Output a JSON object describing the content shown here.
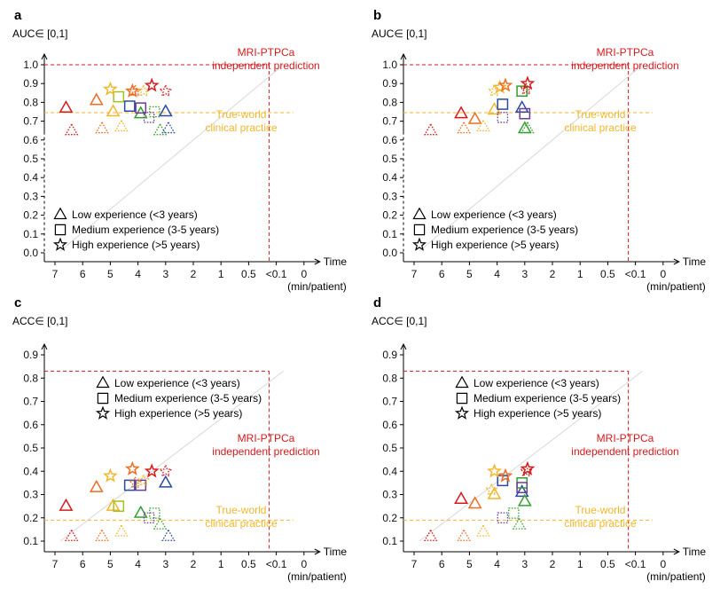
{
  "legend": [
    {
      "marker": "triangle",
      "label": "Low experience (<3 years)"
    },
    {
      "marker": "square",
      "label": "Medium experience (3-5 years)"
    },
    {
      "marker": "star",
      "label": "High experience (>5 years)"
    }
  ],
  "x_axis": {
    "ticks": [
      "7",
      "6",
      "5",
      "4",
      "3",
      "2",
      "1",
      "0.5",
      "<0.1",
      "0"
    ],
    "title": "Time",
    "unit": "(min/patient)"
  },
  "annotations": {
    "model_line1": "MRI-PTPCa",
    "model_line2": "independent prediction",
    "clinic_line1": "True-world",
    "clinic_line2": "clinical practice"
  },
  "colors": {
    "model": "#d7191c",
    "clinic": "#f2b62a",
    "diagonal": "#d8d8d8",
    "readers": [
      "#d7191c",
      "#ef6c21",
      "#f2b62a",
      "#a3c21a",
      "#33a02c",
      "#2b4aa0",
      "#6a3d9a"
    ]
  },
  "chart_data": [
    {
      "panel": "a",
      "type": "scatter",
      "ylabel": "AUC∈ [0,1]",
      "ylim": [
        0.0,
        1.0
      ],
      "yticks": [
        0.0,
        0.1,
        0.2,
        0.3,
        0.4,
        0.5,
        0.6,
        0.7,
        0.8,
        0.9,
        1.0
      ],
      "y_break_below": 0.7,
      "model_value": 1.0,
      "clinic_value": 0.745,
      "points": [
        {
          "x": 6.6,
          "y": 0.77,
          "m": "triangle",
          "c": 0,
          "d": false
        },
        {
          "x": 6.4,
          "y": 0.65,
          "m": "triangle",
          "c": 0,
          "d": true
        },
        {
          "x": 5.5,
          "y": 0.81,
          "m": "triangle",
          "c": 1,
          "d": false
        },
        {
          "x": 5.3,
          "y": 0.66,
          "m": "triangle",
          "c": 1,
          "d": true
        },
        {
          "x": 4.9,
          "y": 0.75,
          "m": "triangle",
          "c": 2,
          "d": false
        },
        {
          "x": 4.6,
          "y": 0.67,
          "m": "triangle",
          "c": 2,
          "d": true
        },
        {
          "x": 3.9,
          "y": 0.74,
          "m": "triangle",
          "c": 4,
          "d": false
        },
        {
          "x": 3.2,
          "y": 0.65,
          "m": "triangle",
          "c": 4,
          "d": true
        },
        {
          "x": 3.0,
          "y": 0.75,
          "m": "triangle",
          "c": 5,
          "d": false
        },
        {
          "x": 2.9,
          "y": 0.66,
          "m": "triangle",
          "c": 5,
          "d": true
        },
        {
          "x": 4.7,
          "y": 0.83,
          "m": "square",
          "c": 3,
          "d": false
        },
        {
          "x": 4.3,
          "y": 0.78,
          "m": "square",
          "c": 5,
          "d": false
        },
        {
          "x": 3.9,
          "y": 0.77,
          "m": "square",
          "c": 6,
          "d": false
        },
        {
          "x": 3.6,
          "y": 0.72,
          "m": "square",
          "c": 6,
          "d": true
        },
        {
          "x": 3.4,
          "y": 0.75,
          "m": "square",
          "c": 4,
          "d": true
        },
        {
          "x": 5.0,
          "y": 0.87,
          "m": "star",
          "c": 2,
          "d": false
        },
        {
          "x": 4.2,
          "y": 0.86,
          "m": "star",
          "c": 1,
          "d": false
        },
        {
          "x": 4.1,
          "y": 0.86,
          "m": "star",
          "c": 1,
          "d": true
        },
        {
          "x": 3.8,
          "y": 0.86,
          "m": "star",
          "c": 2,
          "d": true
        },
        {
          "x": 3.5,
          "y": 0.89,
          "m": "star",
          "c": 0,
          "d": false
        },
        {
          "x": 3.0,
          "y": 0.86,
          "m": "star",
          "c": 0,
          "d": true
        }
      ]
    },
    {
      "panel": "b",
      "type": "scatter",
      "ylabel": "AUC∈ [0,1]",
      "ylim": [
        0.0,
        1.0
      ],
      "yticks": [
        0.0,
        0.1,
        0.2,
        0.3,
        0.4,
        0.5,
        0.6,
        0.7,
        0.8,
        0.9,
        1.0
      ],
      "y_break_below": 0.7,
      "model_value": 1.0,
      "clinic_value": 0.745,
      "points": [
        {
          "x": 6.4,
          "y": 0.65,
          "m": "triangle",
          "c": 0,
          "d": true
        },
        {
          "x": 5.3,
          "y": 0.74,
          "m": "triangle",
          "c": 0,
          "d": false
        },
        {
          "x": 5.2,
          "y": 0.66,
          "m": "triangle",
          "c": 1,
          "d": true
        },
        {
          "x": 4.8,
          "y": 0.71,
          "m": "triangle",
          "c": 1,
          "d": false
        },
        {
          "x": 4.5,
          "y": 0.67,
          "m": "triangle",
          "c": 2,
          "d": true
        },
        {
          "x": 4.1,
          "y": 0.76,
          "m": "triangle",
          "c": 2,
          "d": false
        },
        {
          "x": 3.1,
          "y": 0.77,
          "m": "triangle",
          "c": 5,
          "d": false
        },
        {
          "x": 3.0,
          "y": 0.66,
          "m": "triangle",
          "c": 4,
          "d": false
        },
        {
          "x": 2.9,
          "y": 0.66,
          "m": "triangle",
          "c": 4,
          "d": true
        },
        {
          "x": 3.8,
          "y": 0.79,
          "m": "square",
          "c": 5,
          "d": false
        },
        {
          "x": 3.8,
          "y": 0.72,
          "m": "square",
          "c": 6,
          "d": true
        },
        {
          "x": 3.1,
          "y": 0.86,
          "m": "square",
          "c": 4,
          "d": false
        },
        {
          "x": 3.0,
          "y": 0.74,
          "m": "square",
          "c": 6,
          "d": false
        },
        {
          "x": 4.1,
          "y": 0.86,
          "m": "star",
          "c": 2,
          "d": true
        },
        {
          "x": 3.9,
          "y": 0.88,
          "m": "star",
          "c": 2,
          "d": false
        },
        {
          "x": 3.7,
          "y": 0.89,
          "m": "star",
          "c": 1,
          "d": false
        },
        {
          "x": 2.9,
          "y": 0.9,
          "m": "star",
          "c": 0,
          "d": false
        },
        {
          "x": 2.95,
          "y": 0.87,
          "m": "star",
          "c": 0,
          "d": true
        }
      ]
    },
    {
      "panel": "c",
      "type": "scatter",
      "ylabel": "ACC∈ [0,1]",
      "ylim": [
        0.08,
        0.92
      ],
      "yticks": [
        0.1,
        0.2,
        0.3,
        0.4,
        0.5,
        0.6,
        0.7,
        0.8,
        0.9
      ],
      "y_break_below": null,
      "model_value": 0.83,
      "clinic_value": 0.19,
      "points": [
        {
          "x": 6.6,
          "y": 0.25,
          "m": "triangle",
          "c": 0,
          "d": false
        },
        {
          "x": 6.4,
          "y": 0.12,
          "m": "triangle",
          "c": 0,
          "d": true
        },
        {
          "x": 5.5,
          "y": 0.33,
          "m": "triangle",
          "c": 1,
          "d": false
        },
        {
          "x": 5.3,
          "y": 0.12,
          "m": "triangle",
          "c": 1,
          "d": true
        },
        {
          "x": 4.9,
          "y": 0.25,
          "m": "triangle",
          "c": 2,
          "d": false
        },
        {
          "x": 4.6,
          "y": 0.14,
          "m": "triangle",
          "c": 2,
          "d": true
        },
        {
          "x": 3.9,
          "y": 0.22,
          "m": "triangle",
          "c": 4,
          "d": false
        },
        {
          "x": 3.2,
          "y": 0.17,
          "m": "triangle",
          "c": 4,
          "d": true
        },
        {
          "x": 3.0,
          "y": 0.35,
          "m": "triangle",
          "c": 5,
          "d": false
        },
        {
          "x": 2.9,
          "y": 0.12,
          "m": "triangle",
          "c": 5,
          "d": true
        },
        {
          "x": 4.7,
          "y": 0.25,
          "m": "square",
          "c": 3,
          "d": false
        },
        {
          "x": 4.3,
          "y": 0.34,
          "m": "square",
          "c": 5,
          "d": false
        },
        {
          "x": 3.9,
          "y": 0.34,
          "m": "square",
          "c": 6,
          "d": false
        },
        {
          "x": 3.6,
          "y": 0.2,
          "m": "square",
          "c": 6,
          "d": true
        },
        {
          "x": 3.4,
          "y": 0.22,
          "m": "square",
          "c": 4,
          "d": true
        },
        {
          "x": 5.0,
          "y": 0.38,
          "m": "star",
          "c": 2,
          "d": false
        },
        {
          "x": 4.2,
          "y": 0.41,
          "m": "star",
          "c": 1,
          "d": false
        },
        {
          "x": 4.1,
          "y": 0.35,
          "m": "star",
          "c": 1,
          "d": true
        },
        {
          "x": 3.8,
          "y": 0.36,
          "m": "star",
          "c": 2,
          "d": true
        },
        {
          "x": 3.5,
          "y": 0.4,
          "m": "star",
          "c": 0,
          "d": false
        },
        {
          "x": 3.0,
          "y": 0.4,
          "m": "star",
          "c": 0,
          "d": true
        }
      ]
    },
    {
      "panel": "d",
      "type": "scatter",
      "ylabel": "ACC∈ [0,1]",
      "ylim": [
        0.08,
        0.92
      ],
      "yticks": [
        0.1,
        0.2,
        0.3,
        0.4,
        0.5,
        0.6,
        0.7,
        0.8,
        0.9
      ],
      "y_break_below": null,
      "model_value": 0.83,
      "clinic_value": 0.19,
      "points": [
        {
          "x": 6.4,
          "y": 0.12,
          "m": "triangle",
          "c": 0,
          "d": true
        },
        {
          "x": 5.3,
          "y": 0.28,
          "m": "triangle",
          "c": 0,
          "d": false
        },
        {
          "x": 5.2,
          "y": 0.12,
          "m": "triangle",
          "c": 1,
          "d": true
        },
        {
          "x": 4.8,
          "y": 0.26,
          "m": "triangle",
          "c": 1,
          "d": false
        },
        {
          "x": 4.5,
          "y": 0.14,
          "m": "triangle",
          "c": 2,
          "d": true
        },
        {
          "x": 4.1,
          "y": 0.3,
          "m": "triangle",
          "c": 2,
          "d": false
        },
        {
          "x": 3.1,
          "y": 0.31,
          "m": "triangle",
          "c": 5,
          "d": false
        },
        {
          "x": 3.0,
          "y": 0.27,
          "m": "triangle",
          "c": 4,
          "d": false
        },
        {
          "x": 3.2,
          "y": 0.17,
          "m": "triangle",
          "c": 4,
          "d": true
        },
        {
          "x": 3.8,
          "y": 0.36,
          "m": "square",
          "c": 5,
          "d": false
        },
        {
          "x": 3.8,
          "y": 0.2,
          "m": "square",
          "c": 6,
          "d": true
        },
        {
          "x": 3.1,
          "y": 0.35,
          "m": "square",
          "c": 4,
          "d": false
        },
        {
          "x": 3.1,
          "y": 0.33,
          "m": "square",
          "c": 6,
          "d": false
        },
        {
          "x": 3.4,
          "y": 0.22,
          "m": "square",
          "c": 4,
          "d": true
        },
        {
          "x": 4.1,
          "y": 0.4,
          "m": "star",
          "c": 2,
          "d": false
        },
        {
          "x": 4.2,
          "y": 0.32,
          "m": "star",
          "c": 2,
          "d": true
        },
        {
          "x": 3.7,
          "y": 0.38,
          "m": "star",
          "c": 1,
          "d": false
        },
        {
          "x": 2.9,
          "y": 0.41,
          "m": "star",
          "c": 0,
          "d": false
        },
        {
          "x": 2.95,
          "y": 0.4,
          "m": "star",
          "c": 0,
          "d": true
        }
      ]
    }
  ]
}
